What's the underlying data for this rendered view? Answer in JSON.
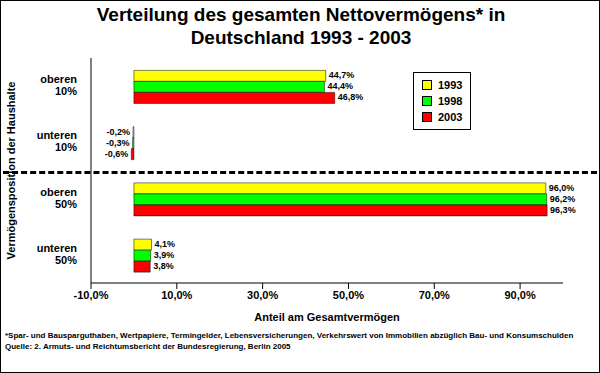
{
  "chart_data": {
    "type": "bar",
    "orientation": "horizontal",
    "title": "Verteilung des gesamten Nettovermögens* in Deutschland 1993 - 2003",
    "x_label": "Anteil am Gesamtvermögen",
    "y_label": "Vermögensposition der Haushalte",
    "categories": [
      "oberen 10%",
      "unteren 10%",
      "oberen 50%",
      "unteren 50%"
    ],
    "series": [
      {
        "name": "1993",
        "color": "#ffff00",
        "values": [
          44.7,
          -0.2,
          96.0,
          4.1
        ],
        "value_labels": [
          "44,7%",
          "-0,2%",
          "96,0%",
          "4,1%"
        ]
      },
      {
        "name": "1998",
        "color": "#00ff00",
        "values": [
          44.4,
          -0.3,
          96.2,
          3.9
        ],
        "value_labels": [
          "44,4%",
          "-0,3%",
          "96,2%",
          "3,9%"
        ]
      },
      {
        "name": "2003",
        "color": "#ff0000",
        "values": [
          46.8,
          -0.6,
          96.3,
          3.8
        ],
        "value_labels": [
          "46,8%",
          "-0,6%",
          "96,3%",
          "3,8%"
        ]
      }
    ],
    "xlim": [
      -10,
      100
    ],
    "xticks": [
      {
        "value": -10,
        "label": "-10,0%"
      },
      {
        "value": 10,
        "label": "10,0%"
      },
      {
        "value": 30,
        "label": "30,0%"
      },
      {
        "value": 50,
        "label": "50,0%"
      },
      {
        "value": 70,
        "label": "70,0%"
      },
      {
        "value": 90,
        "label": "90,0%"
      }
    ],
    "grid": false,
    "legend": "upper right",
    "data_labels": true,
    "footnotes": [
      "*Spar- und Bausparguthaben, Wertpapiere, Termingelder, Lebensversicherungen, Verkehrswert von Immobilien abzüglich Bau- und Konsumschulden",
      "Quelle: 2. Armuts- und Reichtumsbericht der Bundesregierung, Berlin 2005"
    ]
  }
}
